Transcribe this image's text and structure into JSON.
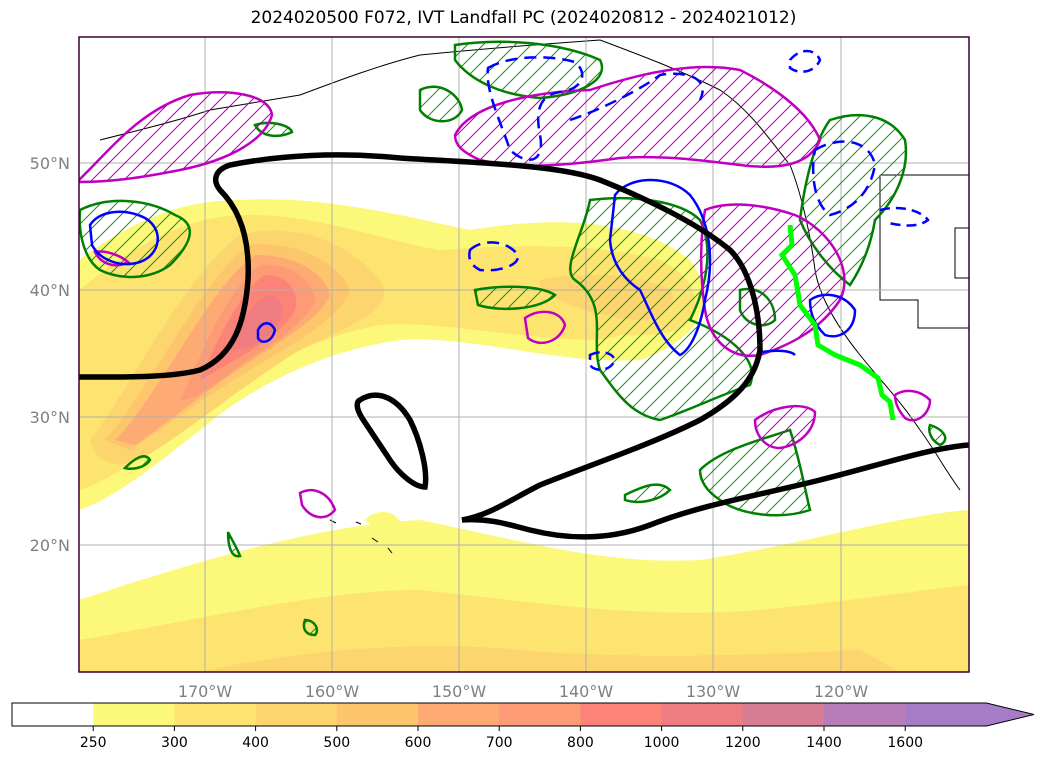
{
  "title": "2024020500 F072, IVT Landfall PC (2024020812 - 2024021012)",
  "lat_labels": [
    "50°N",
    "40°N",
    "30°N",
    "20°N"
  ],
  "lon_labels": [
    "170°W",
    "160°W",
    "150°W",
    "140°W",
    "130°W",
    "120°W"
  ],
  "colorbar": {
    "ticks": [
      "250",
      "300",
      "400",
      "500",
      "600",
      "700",
      "800",
      "1000",
      "1200",
      "1400",
      "1600"
    ],
    "colors": [
      "#ffffff",
      "#fcf87a",
      "#fde36f",
      "#fdd56e",
      "#fdc56c",
      "#fdaa74",
      "#fc9b75",
      "#fb8377",
      "#ef7c80",
      "#d87e94",
      "#b87cb8",
      "#a77cc7"
    ],
    "extend": "max"
  },
  "overlays": {
    "positive_hatch_color": "#008000",
    "negative_contour_color": "#0000ff",
    "magenta_contour_color": "#c000c0",
    "thick_contour_color": "#000000",
    "landfall_line_color": "#00ff00"
  }
}
